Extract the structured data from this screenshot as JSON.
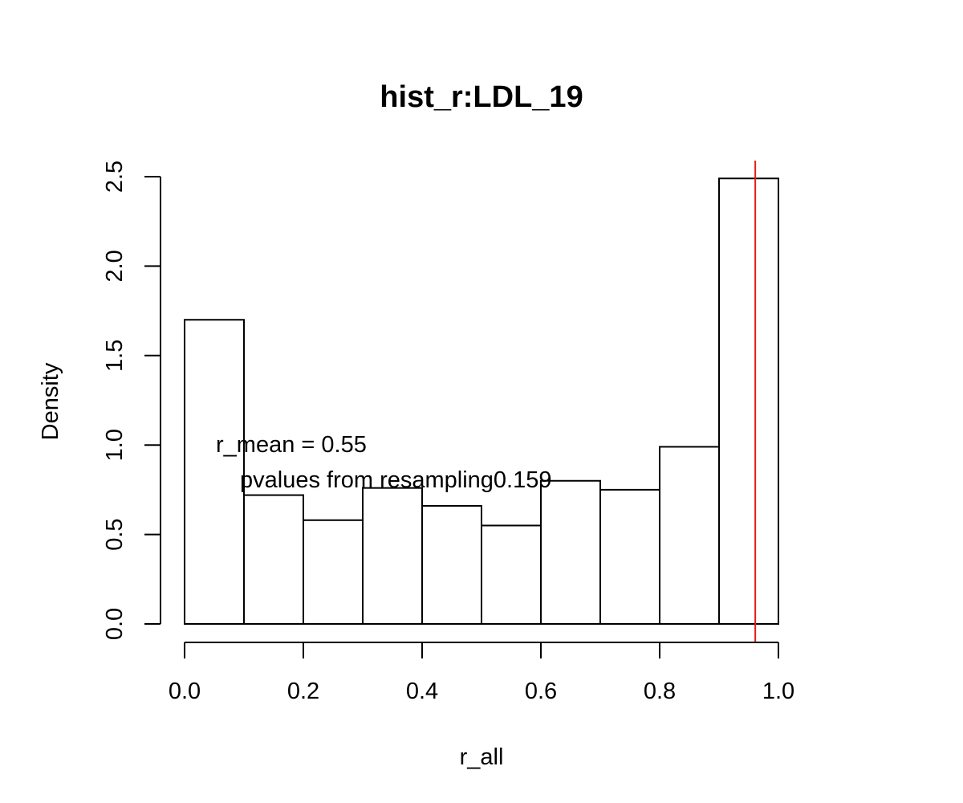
{
  "chart_data": {
    "type": "histogram",
    "title": "hist_r:LDL_19",
    "xlabel": "r_all",
    "ylabel": "Density",
    "xlim": [
      0.0,
      1.0
    ],
    "ylim": [
      0.0,
      2.5
    ],
    "x_ticks": [
      "0.0",
      "0.2",
      "0.4",
      "0.6",
      "0.8",
      "1.0"
    ],
    "y_ticks": [
      "0.0",
      "0.5",
      "1.0",
      "1.5",
      "2.0",
      "2.5"
    ],
    "bins": [
      {
        "start": 0.0,
        "end": 0.1,
        "density": 1.7
      },
      {
        "start": 0.1,
        "end": 0.2,
        "density": 0.72
      },
      {
        "start": 0.2,
        "end": 0.3,
        "density": 0.58
      },
      {
        "start": 0.3,
        "end": 0.4,
        "density": 0.76
      },
      {
        "start": 0.4,
        "end": 0.5,
        "density": 0.66
      },
      {
        "start": 0.5,
        "end": 0.6,
        "density": 0.55
      },
      {
        "start": 0.6,
        "end": 0.7,
        "density": 0.8
      },
      {
        "start": 0.7,
        "end": 0.8,
        "density": 0.75
      },
      {
        "start": 0.8,
        "end": 0.9,
        "density": 0.99
      },
      {
        "start": 0.9,
        "end": 1.0,
        "density": 2.49
      }
    ],
    "reference_line": {
      "x": 0.961,
      "color": "#e41a1c"
    },
    "annotations": {
      "mean_text": "r_mean = 0.55",
      "pvalue_text": "pvalues from resampling0.159"
    },
    "grid": false,
    "legend": "none"
  }
}
